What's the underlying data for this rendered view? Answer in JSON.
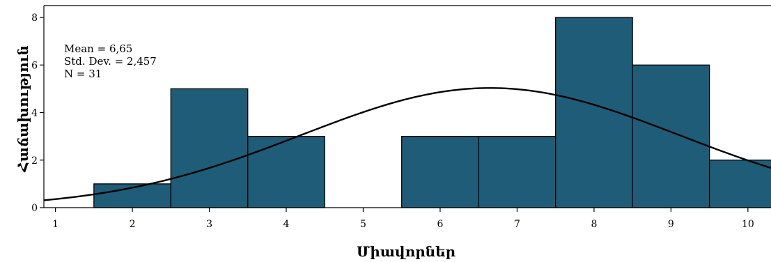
{
  "chart_data": {
    "type": "bar",
    "subtype": "histogram",
    "x_ticks": [
      1,
      2,
      3,
      4,
      5,
      6,
      7,
      8,
      9,
      10
    ],
    "bins": [
      {
        "center": 2,
        "count": 1
      },
      {
        "center": 3,
        "count": 5
      },
      {
        "center": 4,
        "count": 3
      },
      {
        "center": 5,
        "count": 0
      },
      {
        "center": 6,
        "count": 3
      },
      {
        "center": 7,
        "count": 3
      },
      {
        "center": 8,
        "count": 8
      },
      {
        "center": 9,
        "count": 6
      },
      {
        "center": 10,
        "count": 2
      }
    ],
    "y_ticks": [
      0,
      2,
      4,
      6,
      8
    ],
    "xlim": [
      0.85,
      10.3
    ],
    "ylim": [
      0,
      8.5
    ],
    "xlabel": "Միավորներ",
    "ylabel": "Հաճախություն",
    "normal_curve": {
      "mean": 6.65,
      "std": 2.457,
      "n": 31
    },
    "stats": {
      "mean_label": "Mean = 6,65",
      "std_label": "Std. Dev. = 2,457",
      "n_label": "N = 31"
    },
    "bar_color": "#1f5c78",
    "bar_edge_color": "#000000",
    "curve_color": "#000000",
    "grid": false
  }
}
